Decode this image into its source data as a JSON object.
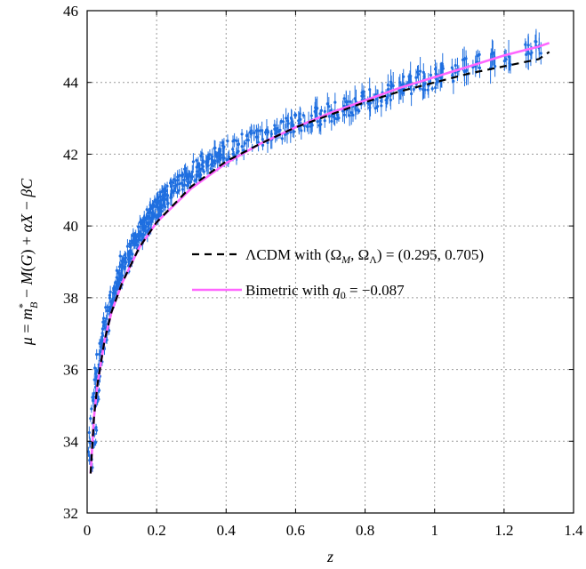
{
  "chart_data": {
    "type": "scatter",
    "title": "",
    "xlabel": "z",
    "ylabel": "μ = m*_B − M(G) + αX − βC",
    "xlim": [
      0,
      1.4
    ],
    "ylim": [
      32,
      46
    ],
    "xticks": [
      "0",
      "0.2",
      "0.4",
      "0.6",
      "0.8",
      "1",
      "1.2",
      "1.4"
    ],
    "yticks": [
      "32",
      "34",
      "36",
      "38",
      "40",
      "42",
      "44",
      "46"
    ],
    "grid": true,
    "legend_placement": "center-right",
    "colors": {
      "data_points": "#1f6fe0",
      "lcdm": "#000000",
      "bimetric": "#ff66ff"
    },
    "series": [
      {
        "name": "ΛCDM with (Ω_M, Ω_Λ) = (0.295, 0.705)",
        "style": "dashed",
        "x": [
          0.01,
          0.02,
          0.03,
          0.05,
          0.07,
          0.1,
          0.15,
          0.2,
          0.3,
          0.4,
          0.5,
          0.6,
          0.7,
          0.8,
          0.9,
          1.0,
          1.1,
          1.2,
          1.3,
          1.33
        ],
        "y": [
          33.1,
          34.7,
          35.6,
          36.8,
          37.6,
          38.4,
          39.4,
          40.1,
          41.1,
          41.8,
          42.3,
          42.75,
          43.1,
          43.45,
          43.75,
          44.0,
          44.25,
          44.45,
          44.65,
          44.85
        ]
      },
      {
        "name": "Bimetric with q_0 = −0.087",
        "style": "solid",
        "x": [
          0.01,
          0.02,
          0.03,
          0.05,
          0.07,
          0.1,
          0.15,
          0.2,
          0.3,
          0.4,
          0.5,
          0.6,
          0.7,
          0.8,
          0.9,
          1.0,
          1.1,
          1.2,
          1.3,
          1.33
        ],
        "y": [
          33.1,
          34.7,
          35.6,
          36.8,
          37.6,
          38.4,
          39.4,
          40.1,
          41.05,
          41.75,
          42.3,
          42.75,
          43.15,
          43.5,
          43.85,
          44.15,
          44.45,
          44.75,
          45.0,
          45.1
        ]
      }
    ],
    "legend": [
      {
        "label_prefix": "ΛCDM with (Ω",
        "label": "ΛCDM with (Ω_M, Ω_Λ) = (0.295, 0.705)"
      },
      {
        "label": "Bimetric with q_0 = −0.087"
      }
    ],
    "scatter_sample": {
      "description_free": true,
      "x": [
        0.012,
        0.015,
        0.018,
        0.022,
        0.025,
        0.028,
        0.032,
        0.035,
        0.04,
        0.045,
        0.05,
        0.055,
        0.06,
        0.065,
        0.07,
        0.075,
        0.08,
        0.085,
        0.09,
        0.095,
        0.1,
        0.105,
        0.11,
        0.115,
        0.12,
        0.125,
        0.13,
        0.135,
        0.14,
        0.145,
        0.15,
        0.155,
        0.16,
        0.165,
        0.17,
        0.175,
        0.18,
        0.185,
        0.19,
        0.195,
        0.2,
        0.205,
        0.21,
        0.215,
        0.22,
        0.225,
        0.23,
        0.24,
        0.25,
        0.26,
        0.27,
        0.28,
        0.29,
        0.3,
        0.31,
        0.32,
        0.33,
        0.34,
        0.35,
        0.36,
        0.37,
        0.38,
        0.39,
        0.4,
        0.42,
        0.44,
        0.46,
        0.48,
        0.5,
        0.52,
        0.54,
        0.56,
        0.58,
        0.6,
        0.62,
        0.64,
        0.66,
        0.68,
        0.7,
        0.72,
        0.74,
        0.76,
        0.78,
        0.8,
        0.82,
        0.84,
        0.86,
        0.88,
        0.9,
        0.92,
        0.94,
        0.96,
        0.98,
        1.0,
        1.02,
        1.06,
        1.09,
        1.12,
        1.17,
        1.21,
        1.27,
        1.3
      ],
      "y": [
        33.5,
        34.0,
        34.4,
        35.0,
        35.3,
        35.6,
        35.9,
        36.2,
        36.5,
        36.8,
        37.0,
        37.3,
        37.5,
        37.7,
        37.9,
        38.0,
        38.2,
        38.35,
        38.5,
        38.6,
        38.7,
        38.9,
        39.0,
        39.1,
        39.25,
        39.3,
        39.45,
        39.5,
        39.6,
        39.7,
        39.75,
        39.85,
        39.95,
        40.0,
        40.1,
        40.15,
        40.25,
        40.3,
        40.35,
        40.45,
        40.5,
        40.55,
        40.6,
        40.7,
        40.75,
        40.8,
        40.85,
        40.95,
        41.05,
        41.15,
        41.2,
        41.3,
        41.4,
        41.45,
        41.55,
        41.6,
        41.7,
        41.75,
        41.8,
        41.9,
        41.95,
        42.0,
        42.05,
        42.1,
        42.2,
        42.3,
        42.35,
        42.45,
        42.5,
        42.55,
        42.65,
        42.7,
        42.8,
        42.85,
        42.9,
        43.0,
        43.05,
        43.1,
        43.15,
        43.25,
        43.3,
        43.35,
        43.45,
        43.5,
        43.55,
        43.6,
        43.7,
        43.75,
        43.85,
        43.9,
        43.95,
        44.05,
        44.0,
        44.1,
        44.2,
        44.2,
        44.4,
        44.6,
        44.6,
        44.7,
        44.8,
        44.9
      ]
    }
  }
}
